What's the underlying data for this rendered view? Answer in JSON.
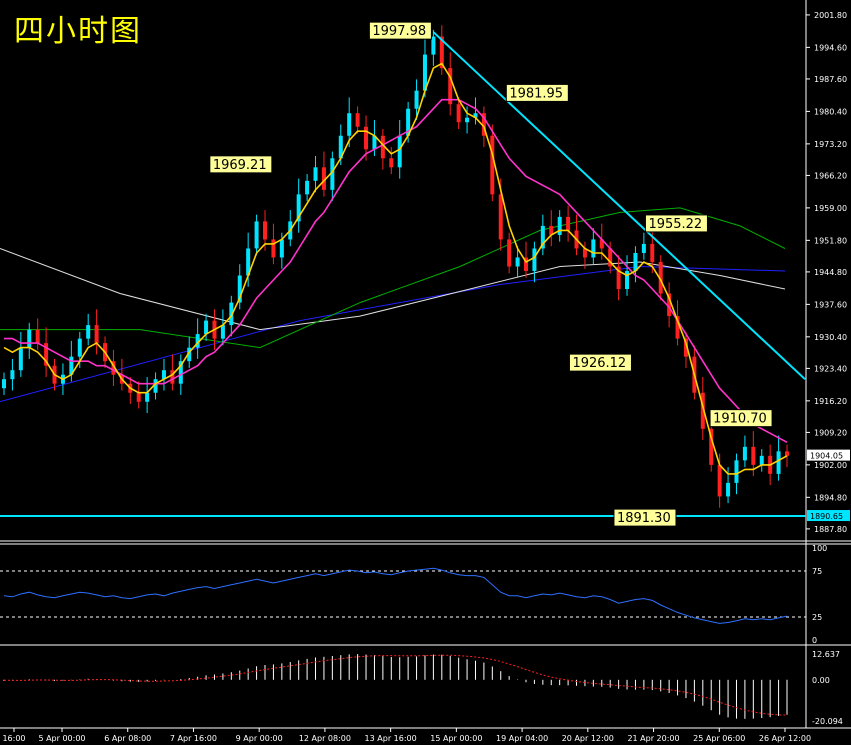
{
  "title": "四小时图",
  "colors": {
    "background": "#000000",
    "axis": "#ffffff",
    "bull_candle": "#00e5ff",
    "bear_candle": "#ff2020",
    "ma_fast": "#ffd200",
    "ma_mid": "#ff33cc",
    "ma_green": "#00b000",
    "ma_white": "#e0e0e0",
    "ma_blue": "#2020ff",
    "trendline": "#00e5ff",
    "label_bg": "#ffff99",
    "rsi_line": "#2f6fff",
    "macd_hist": "#ffffff",
    "macd_signal": "#ff2020"
  },
  "chart_data": [
    {
      "type": "candlestick",
      "title": "四小时图",
      "x_tick_labels": [
        "16:00",
        "5 Apr 00:00",
        "6 Apr 08:00",
        "7 Apr 16:00",
        "9 Apr 00:00",
        "12 Apr 08:00",
        "13 Apr 16:00",
        "15 Apr 00:00",
        "19 Apr 04:00",
        "20 Apr 12:00",
        "21 Apr 20:00",
        "25 Apr 06:00",
        "26 Apr 12:00"
      ],
      "y_tick_labels": [
        "2001.80",
        "1994.60",
        "1987.60",
        "1980.40",
        "1973.20",
        "1966.20",
        "1959.00",
        "1951.80",
        "1944.80",
        "1937.60",
        "1930.40",
        "1923.40",
        "1916.20",
        "1909.20",
        "1902.00",
        "1894.80",
        "1887.80"
      ],
      "ylim": [
        1886.0,
        2004.0
      ],
      "current_price": "1904.05",
      "horizontal_line": {
        "value": 1890.65,
        "label": "1890.65"
      },
      "annotations": [
        {
          "text": "1997.98",
          "value": 1997.98
        },
        {
          "text": "1981.95",
          "value": 1981.95
        },
        {
          "text": "1969.21",
          "value": 1969.21
        },
        {
          "text": "1955.22",
          "value": 1955.22
        },
        {
          "text": "1926.12",
          "value": 1926.12
        },
        {
          "text": "1910.70",
          "value": 1910.7
        },
        {
          "text": "1891.30",
          "value": 1891.3
        }
      ],
      "close_path": [
        1921,
        1923,
        1928,
        1932,
        1929,
        1924,
        1920,
        1922,
        1926,
        1930,
        1933,
        1929,
        1925,
        1922,
        1920,
        1918,
        1916,
        1918,
        1921,
        1923,
        1920,
        1925,
        1928,
        1931,
        1934,
        1930,
        1933,
        1938,
        1944,
        1950,
        1956,
        1952,
        1948,
        1952,
        1956,
        1962,
        1965,
        1968,
        1963,
        1970,
        1975,
        1980,
        1977,
        1972,
        1975,
        1970,
        1968,
        1975,
        1981,
        1985,
        1993,
        1997,
        1990,
        1982,
        1978,
        1979,
        1980,
        1975,
        1962,
        1952,
        1946,
        1948,
        1945,
        1950,
        1955,
        1953,
        1957,
        1954,
        1950,
        1948,
        1952,
        1950,
        1946,
        1941,
        1945,
        1949,
        1951,
        1947,
        1940,
        1935,
        1930,
        1926,
        1918,
        1910,
        1902,
        1895,
        1898,
        1903,
        1906,
        1902,
        1904,
        1900,
        1905,
        1904
      ],
      "ma_fast_path": [
        1928,
        1927,
        1928,
        1928,
        1927,
        1925,
        1922,
        1921,
        1922,
        1925,
        1928,
        1929,
        1927,
        1924,
        1921,
        1919,
        1918,
        1918,
        1920,
        1921,
        1922,
        1924,
        1927,
        1929,
        1931,
        1932,
        1933,
        1935,
        1939,
        1944,
        1949,
        1951,
        1951,
        1952,
        1954,
        1957,
        1960,
        1963,
        1965,
        1967,
        1970,
        1974,
        1976,
        1976,
        1975,
        1973,
        1971,
        1972,
        1975,
        1979,
        1985,
        1990,
        1991,
        1988,
        1983,
        1980,
        1979,
        1977,
        1971,
        1963,
        1955,
        1950,
        1947,
        1948,
        1951,
        1953,
        1954,
        1954,
        1952,
        1950,
        1949,
        1949,
        1947,
        1945,
        1944,
        1945,
        1947,
        1946,
        1943,
        1939,
        1934,
        1929,
        1922,
        1915,
        1908,
        1902,
        1900,
        1900,
        1901,
        1901,
        1902,
        1902,
        1903,
        1904
      ],
      "ma_mid_path": [
        1930,
        1930,
        1929,
        1929,
        1929,
        1928,
        1927,
        1926,
        1925,
        1925,
        1925,
        1924,
        1924,
        1923,
        1922,
        1921,
        1920,
        1920,
        1920,
        1920,
        1921,
        1922,
        1923,
        1924,
        1926,
        1927,
        1929,
        1931,
        1933,
        1936,
        1939,
        1941,
        1943,
        1945,
        1947,
        1950,
        1953,
        1956,
        1958,
        1961,
        1964,
        1967,
        1969,
        1971,
        1972,
        1973,
        1974,
        1975,
        1976,
        1977,
        1979,
        1981,
        1983,
        1983,
        1983,
        1982,
        1981,
        1979,
        1976,
        1973,
        1970,
        1968,
        1966,
        1965,
        1964,
        1963,
        1962,
        1960,
        1958,
        1956,
        1954,
        1952,
        1950,
        1948,
        1946,
        1944,
        1943,
        1941,
        1939,
        1937,
        1934,
        1931,
        1928,
        1925,
        1922,
        1919,
        1917,
        1915,
        1913,
        1911,
        1910,
        1909,
        1908,
        1907
      ],
      "rsi": {
        "ylim": [
          0,
          100
        ],
        "tick_labels": [
          "100",
          "75",
          "25",
          "0"
        ],
        "levels": [
          75,
          25
        ],
        "path": [
          48,
          47,
          50,
          52,
          49,
          47,
          46,
          48,
          50,
          52,
          51,
          49,
          47,
          48,
          46,
          45,
          47,
          49,
          50,
          48,
          51,
          53,
          55,
          57,
          58,
          56,
          58,
          60,
          62,
          64,
          66,
          64,
          62,
          64,
          66,
          68,
          70,
          72,
          70,
          72,
          74,
          76,
          75,
          73,
          74,
          72,
          71,
          73,
          75,
          76,
          77,
          78,
          76,
          73,
          71,
          70,
          70,
          68,
          60,
          52,
          48,
          48,
          46,
          48,
          50,
          49,
          51,
          49,
          47,
          46,
          48,
          47,
          44,
          40,
          42,
          44,
          45,
          43,
          38,
          34,
          30,
          27,
          24,
          22,
          20,
          18,
          19,
          21,
          23,
          22,
          23,
          22,
          24,
          26
        ]
      },
      "macd": {
        "ylim": [
          -22.0,
          15.0
        ],
        "tick_labels": [
          "12.637",
          "0.00",
          "-20.094"
        ],
        "histogram": [
          -0.6,
          -0.4,
          0.0,
          0.3,
          0.1,
          -0.2,
          -0.5,
          -0.4,
          -0.2,
          0.2,
          0.5,
          0.3,
          -0.1,
          -0.4,
          -0.7,
          -0.9,
          -1.0,
          -0.8,
          -0.5,
          -0.2,
          0.0,
          0.4,
          0.9,
          1.5,
          2.2,
          2.6,
          3.1,
          3.7,
          4.5,
          5.5,
          6.6,
          7.2,
          7.5,
          8.0,
          8.7,
          9.5,
          10.2,
          10.9,
          11.2,
          11.6,
          12.0,
          12.4,
          12.5,
          12.3,
          12.1,
          11.6,
          11.1,
          11.0,
          11.2,
          11.4,
          11.9,
          12.3,
          12.2,
          11.6,
          10.8,
          10.0,
          9.3,
          8.4,
          6.5,
          4.2,
          1.8,
          0.2,
          -1.2,
          -2.0,
          -2.4,
          -2.6,
          -2.6,
          -2.7,
          -2.9,
          -3.1,
          -3.3,
          -3.4,
          -3.8,
          -4.4,
          -4.7,
          -4.8,
          -4.8,
          -5.0,
          -5.6,
          -6.4,
          -7.6,
          -8.9,
          -10.6,
          -12.6,
          -14.8,
          -17.0,
          -18.3,
          -18.9,
          -19.0,
          -18.9,
          -18.6,
          -18.2,
          -17.6,
          -17.0
        ],
        "signal": [
          -0.2,
          -0.3,
          -0.3,
          -0.2,
          -0.1,
          -0.1,
          -0.2,
          -0.3,
          -0.3,
          -0.2,
          0.0,
          0.1,
          0.1,
          0.0,
          -0.2,
          -0.4,
          -0.6,
          -0.7,
          -0.7,
          -0.6,
          -0.5,
          -0.3,
          0.0,
          0.4,
          0.8,
          1.3,
          1.8,
          2.3,
          2.9,
          3.6,
          4.3,
          5.0,
          5.6,
          6.2,
          6.8,
          7.4,
          8.0,
          8.7,
          9.3,
          9.8,
          10.3,
          10.8,
          11.2,
          11.5,
          11.7,
          11.8,
          11.8,
          11.7,
          11.7,
          11.7,
          11.8,
          11.9,
          12.0,
          12.0,
          11.8,
          11.5,
          11.1,
          10.6,
          9.9,
          8.9,
          7.7,
          6.4,
          5.0,
          3.6,
          2.4,
          1.3,
          0.5,
          -0.2,
          -0.8,
          -1.3,
          -1.7,
          -2.1,
          -2.4,
          -2.8,
          -3.1,
          -3.5,
          -3.8,
          -4.0,
          -4.4,
          -4.8,
          -5.4,
          -6.1,
          -7.0,
          -8.1,
          -9.4,
          -10.9,
          -12.3,
          -13.6,
          -14.7,
          -15.6,
          -16.3,
          -16.8,
          -17.1,
          -17.2
        ]
      }
    }
  ]
}
